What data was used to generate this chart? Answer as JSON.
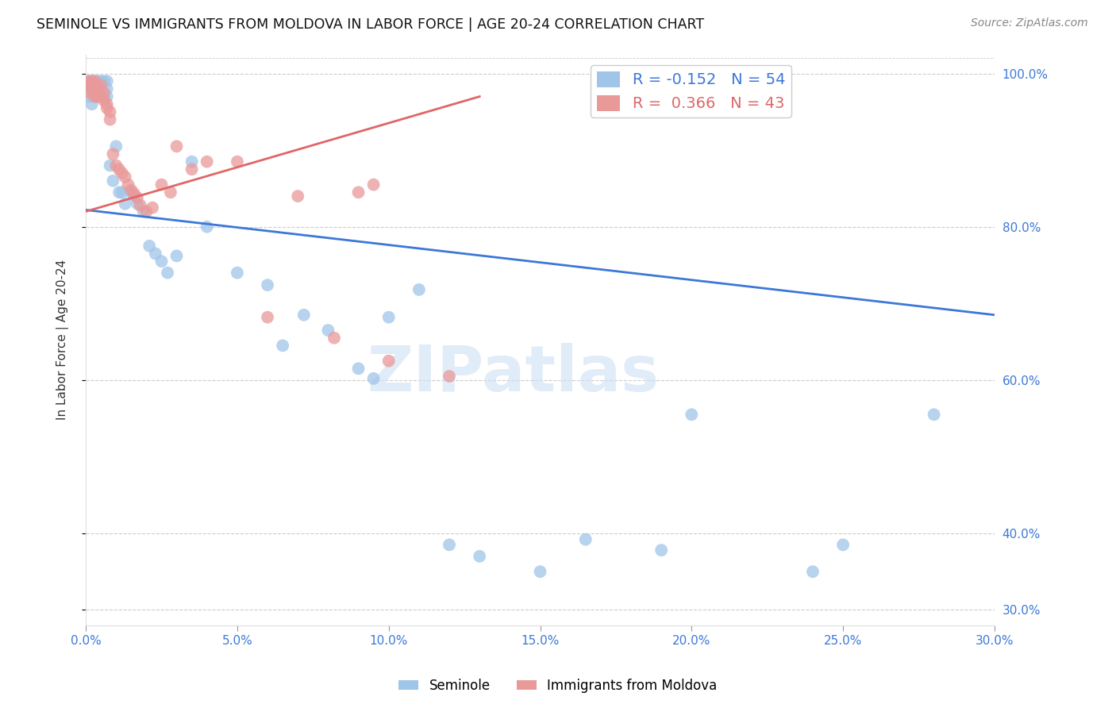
{
  "title": "SEMINOLE VS IMMIGRANTS FROM MOLDOVA IN LABOR FORCE | AGE 20-24 CORRELATION CHART",
  "source": "Source: ZipAtlas.com",
  "ylabel": "In Labor Force | Age 20-24",
  "xmin": 0.0,
  "xmax": 0.3,
  "ymin": 0.28,
  "ymax": 1.025,
  "yticks": [
    0.3,
    0.4,
    0.6,
    0.8,
    1.0
  ],
  "ytick_labels": [
    "30.0%",
    "40.0%",
    "60.0%",
    "80.0%",
    "100.0%"
  ],
  "xticks": [
    0.0,
    0.05,
    0.1,
    0.15,
    0.2,
    0.25,
    0.3
  ],
  "xtick_labels": [
    "0.0%",
    "5.0%",
    "10.0%",
    "15.0%",
    "20.0%",
    "25.0%",
    "30.0%"
  ],
  "blue_color": "#9fc5e8",
  "pink_color": "#ea9999",
  "blue_line_color": "#3c78d8",
  "pink_line_color": "#e06666",
  "legend_R_blue": "-0.152",
  "legend_N_blue": "54",
  "legend_R_pink": "0.366",
  "legend_N_pink": "43",
  "watermark": "ZIPatlas",
  "blue_trend_x0": 0.0,
  "blue_trend_y0": 0.822,
  "blue_trend_x1": 0.3,
  "blue_trend_y1": 0.685,
  "pink_trend_x0": 0.0,
  "pink_trend_y0": 0.82,
  "pink_trend_x1": 0.13,
  "pink_trend_y1": 0.97,
  "seminole_x": [
    0.001,
    0.001,
    0.001,
    0.002,
    0.002,
    0.002,
    0.003,
    0.003,
    0.003,
    0.004,
    0.004,
    0.004,
    0.005,
    0.005,
    0.006,
    0.006,
    0.007,
    0.007,
    0.007,
    0.008,
    0.009,
    0.01,
    0.011,
    0.012,
    0.013,
    0.015,
    0.016,
    0.017,
    0.019,
    0.021,
    0.023,
    0.025,
    0.027,
    0.03,
    0.035,
    0.04,
    0.05,
    0.06,
    0.065,
    0.072,
    0.08,
    0.09,
    0.095,
    0.1,
    0.11,
    0.12,
    0.13,
    0.15,
    0.165,
    0.19,
    0.2,
    0.24,
    0.25,
    0.28
  ],
  "seminole_y": [
    0.99,
    0.98,
    0.97,
    0.99,
    0.98,
    0.96,
    0.99,
    0.98,
    0.97,
    0.99,
    0.98,
    0.97,
    0.99,
    0.98,
    0.99,
    0.97,
    0.99,
    0.98,
    0.97,
    0.88,
    0.86,
    0.905,
    0.845,
    0.845,
    0.83,
    0.845,
    0.84,
    0.83,
    0.82,
    0.775,
    0.765,
    0.755,
    0.74,
    0.762,
    0.885,
    0.8,
    0.74,
    0.724,
    0.645,
    0.685,
    0.665,
    0.615,
    0.602,
    0.682,
    0.718,
    0.385,
    0.37,
    0.35,
    0.392,
    0.378,
    0.555,
    0.35,
    0.385,
    0.555
  ],
  "moldova_x": [
    0.001,
    0.001,
    0.001,
    0.002,
    0.002,
    0.003,
    0.003,
    0.003,
    0.004,
    0.004,
    0.005,
    0.005,
    0.006,
    0.006,
    0.007,
    0.007,
    0.008,
    0.008,
    0.009,
    0.01,
    0.011,
    0.012,
    0.013,
    0.014,
    0.015,
    0.016,
    0.017,
    0.018,
    0.02,
    0.022,
    0.025,
    0.028,
    0.03,
    0.035,
    0.04,
    0.05,
    0.06,
    0.07,
    0.082,
    0.09,
    0.095,
    0.1,
    0.12
  ],
  "moldova_y": [
    0.99,
    0.985,
    0.975,
    0.99,
    0.98,
    0.99,
    0.985,
    0.97,
    0.98,
    0.97,
    0.985,
    0.97,
    0.975,
    0.965,
    0.96,
    0.955,
    0.95,
    0.94,
    0.895,
    0.88,
    0.875,
    0.87,
    0.865,
    0.855,
    0.848,
    0.843,
    0.838,
    0.828,
    0.82,
    0.825,
    0.855,
    0.845,
    0.905,
    0.875,
    0.885,
    0.885,
    0.682,
    0.84,
    0.655,
    0.845,
    0.855,
    0.625,
    0.605
  ]
}
